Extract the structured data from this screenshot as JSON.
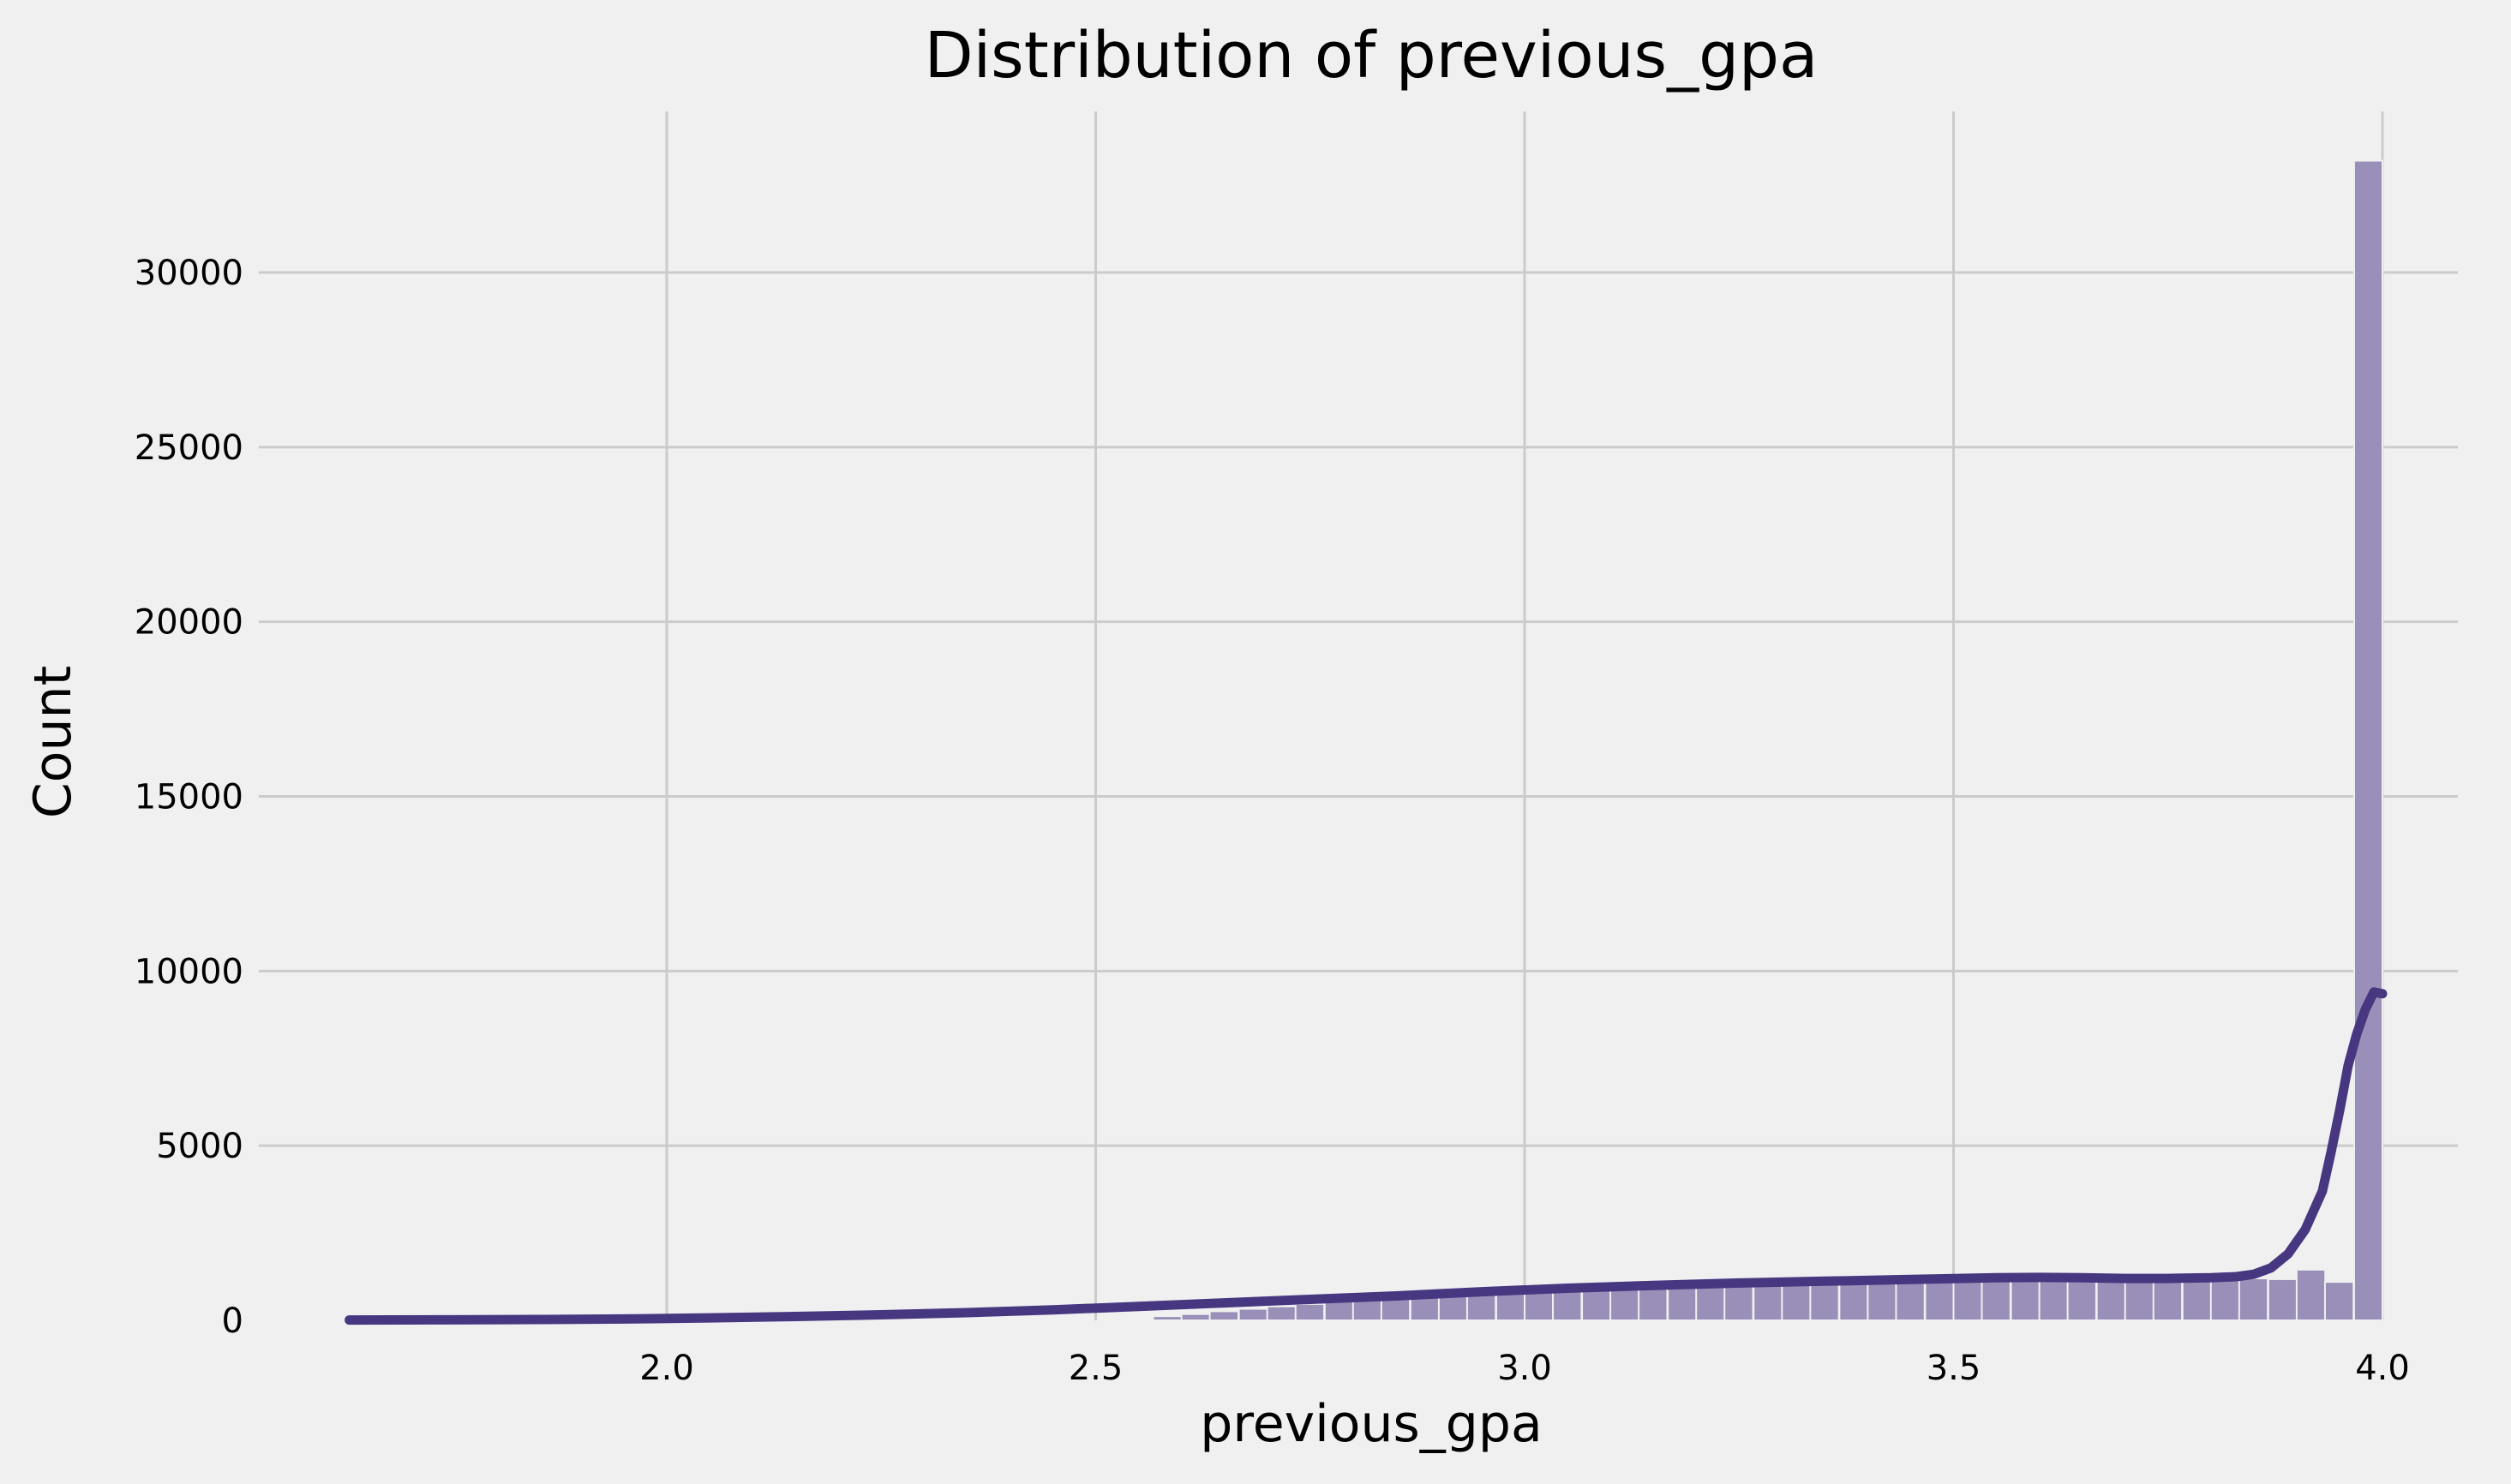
{
  "chart_data": {
    "type": "bar",
    "title": "Distribution of previous_gpa",
    "xlabel": "previous_gpa",
    "ylabel": "Count",
    "xlim": [
      1.63,
      4.0
    ],
    "ylim": [
      0,
      33000
    ],
    "xticks": [
      2.0,
      2.5,
      3.0,
      3.5,
      4.0
    ],
    "xtick_labels": [
      "2.0",
      "2.5",
      "3.0",
      "3.5",
      "4.0"
    ],
    "yticks": [
      0,
      5000,
      10000,
      15000,
      20000,
      25000,
      30000
    ],
    "ytick_labels": [
      "0",
      "5000",
      "10000",
      "15000",
      "20000",
      "25000",
      "30000"
    ],
    "grid": true,
    "colors": {
      "bars": "#9a8fb8",
      "kde": "#473780",
      "background": "#f0f0f0",
      "grid": "#cbcbcb"
    },
    "histogram": {
      "bin_width": 0.0333,
      "bin_left_edges": [
        2.567,
        2.6,
        2.633,
        2.667,
        2.7,
        2.733,
        2.767,
        2.8,
        2.833,
        2.867,
        2.9,
        2.933,
        2.967,
        3.0,
        3.033,
        3.067,
        3.1,
        3.133,
        3.167,
        3.2,
        3.233,
        3.267,
        3.3,
        3.333,
        3.367,
        3.4,
        3.433,
        3.467,
        3.5,
        3.533,
        3.567,
        3.6,
        3.633,
        3.667,
        3.7,
        3.733,
        3.767,
        3.8,
        3.833,
        3.867,
        3.9,
        3.933,
        3.967
      ],
      "counts": [
        120,
        180,
        260,
        330,
        400,
        470,
        540,
        600,
        660,
        720,
        800,
        860,
        920,
        960,
        1000,
        1030,
        1060,
        1080,
        1100,
        1120,
        1150,
        1180,
        1200,
        1210,
        1220,
        1230,
        1240,
        1250,
        1260,
        1270,
        1270,
        1270,
        1260,
        1250,
        1250,
        1240,
        1230,
        1220,
        1200,
        1180,
        1450,
        1100,
        33200
      ]
    },
    "kde": {
      "x": [
        1.63,
        1.75,
        1.85,
        1.95,
        2.05,
        2.15,
        2.25,
        2.35,
        2.45,
        2.55,
        2.65,
        2.75,
        2.85,
        2.95,
        3.05,
        3.15,
        3.25,
        3.35,
        3.45,
        3.55,
        3.6,
        3.65,
        3.7,
        3.75,
        3.8,
        3.83,
        3.85,
        3.87,
        3.89,
        3.91,
        3.93,
        3.94,
        3.95,
        3.96,
        3.97,
        3.98,
        3.99,
        4.0
      ],
      "y": [
        10,
        15,
        25,
        40,
        70,
        110,
        160,
        220,
        300,
        400,
        500,
        600,
        700,
        820,
        920,
        1000,
        1070,
        1120,
        1170,
        1220,
        1230,
        1220,
        1200,
        1200,
        1220,
        1250,
        1320,
        1500,
        1900,
        2600,
        3700,
        4800,
        6000,
        7300,
        8200,
        8900,
        9400,
        9350
      ]
    }
  }
}
